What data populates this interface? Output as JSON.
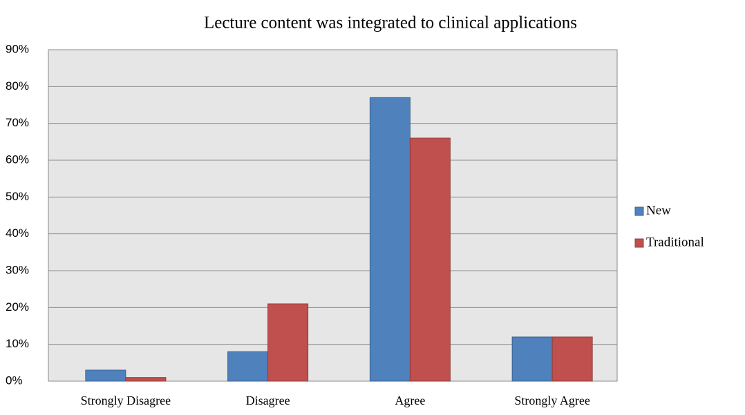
{
  "chart_data": {
    "type": "bar",
    "title": "Lecture content was integrated to clinical applications",
    "categories": [
      "Strongly Disagree",
      "Disagree",
      "Agree",
      "Strongly Agree"
    ],
    "series": [
      {
        "name": "New",
        "color": "#4f81bd",
        "values": [
          3,
          8,
          77,
          12
        ]
      },
      {
        "name": "Traditional",
        "color": "#c0504d",
        "values": [
          1,
          21,
          66,
          12
        ]
      }
    ],
    "ylim": [
      0,
      90
    ],
    "yticks": [
      {
        "value": 0,
        "label": "0%"
      },
      {
        "value": 10,
        "label": "10%"
      },
      {
        "value": 20,
        "label": "20%"
      },
      {
        "value": 30,
        "label": "30%"
      },
      {
        "value": 40,
        "label": "40%"
      },
      {
        "value": 50,
        "label": "50%"
      },
      {
        "value": 60,
        "label": "60%"
      },
      {
        "value": 70,
        "label": "70%"
      },
      {
        "value": 80,
        "label": "80%"
      },
      {
        "value": 90,
        "label": "90%"
      }
    ],
    "grid": true,
    "legend": "right"
  }
}
